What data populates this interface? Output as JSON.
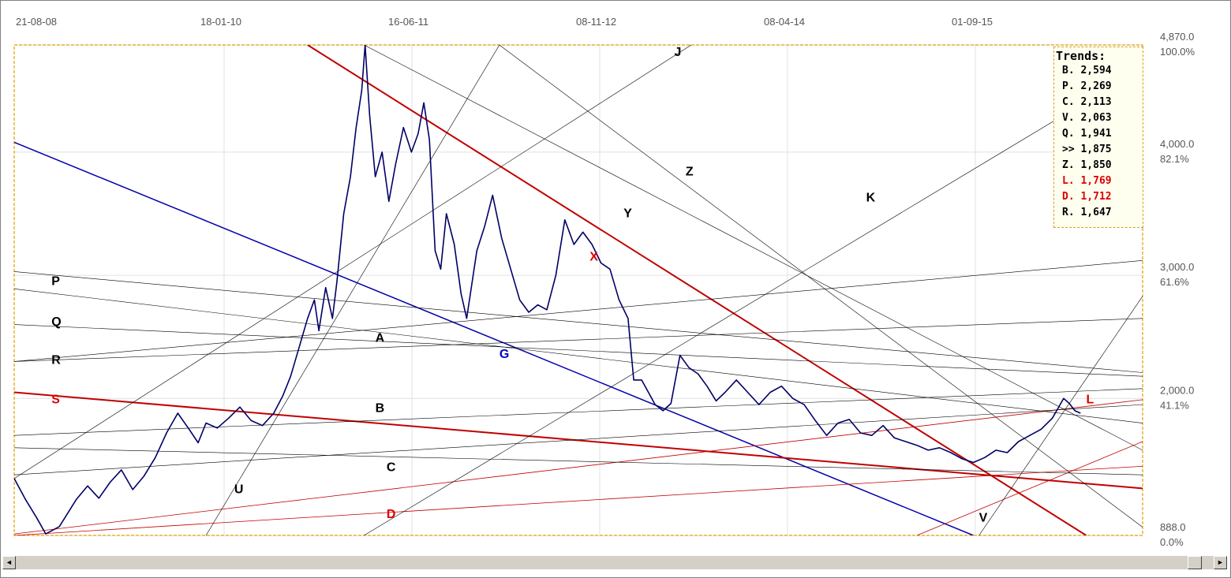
{
  "chart_data": {
    "type": "line",
    "title": "",
    "x_tick_labels": [
      "21-08-08",
      "18-01-10",
      "16-06-11",
      "08-11-12",
      "08-04-14",
      "01-09-15"
    ],
    "y_tick_labels": [
      {
        "value": 4870,
        "price": "4,870.0",
        "pct": "100.0%"
      },
      {
        "value": 4000,
        "price": "4,000.0",
        "pct": "82.1%"
      },
      {
        "value": 3000,
        "price": "3,000.0",
        "pct": "61.6%"
      },
      {
        "value": 2000,
        "price": "2,000.0",
        "pct": "41.1%"
      },
      {
        "value": 888,
        "price": "888.0",
        "pct": "0.0%"
      }
    ],
    "ylim": [
      888,
      4870
    ],
    "grid": true,
    "price_series": {
      "color": "#000066",
      "points": [
        [
          0.0,
          1350
        ],
        [
          0.01,
          1180
        ],
        [
          0.02,
          1030
        ],
        [
          0.028,
          900
        ],
        [
          0.04,
          960
        ],
        [
          0.055,
          1180
        ],
        [
          0.065,
          1290
        ],
        [
          0.075,
          1190
        ],
        [
          0.085,
          1320
        ],
        [
          0.095,
          1420
        ],
        [
          0.105,
          1260
        ],
        [
          0.115,
          1370
        ],
        [
          0.125,
          1520
        ],
        [
          0.135,
          1720
        ],
        [
          0.145,
          1880
        ],
        [
          0.155,
          1750
        ],
        [
          0.163,
          1640
        ],
        [
          0.17,
          1800
        ],
        [
          0.18,
          1760
        ],
        [
          0.19,
          1840
        ],
        [
          0.2,
          1930
        ],
        [
          0.21,
          1820
        ],
        [
          0.22,
          1780
        ],
        [
          0.23,
          1880
        ],
        [
          0.238,
          2020
        ],
        [
          0.245,
          2180
        ],
        [
          0.252,
          2400
        ],
        [
          0.26,
          2650
        ],
        [
          0.266,
          2800
        ],
        [
          0.27,
          2550
        ],
        [
          0.276,
          2900
        ],
        [
          0.282,
          2650
        ],
        [
          0.286,
          2950
        ],
        [
          0.292,
          3500
        ],
        [
          0.298,
          3800
        ],
        [
          0.303,
          4200
        ],
        [
          0.308,
          4500
        ],
        [
          0.311,
          4870
        ],
        [
          0.315,
          4300
        ],
        [
          0.32,
          3800
        ],
        [
          0.326,
          4000
        ],
        [
          0.332,
          3600
        ],
        [
          0.338,
          3900
        ],
        [
          0.345,
          4200
        ],
        [
          0.352,
          4000
        ],
        [
          0.358,
          4150
        ],
        [
          0.363,
          4400
        ],
        [
          0.368,
          4100
        ],
        [
          0.373,
          3200
        ],
        [
          0.378,
          3050
        ],
        [
          0.383,
          3500
        ],
        [
          0.39,
          3250
        ],
        [
          0.396,
          2850
        ],
        [
          0.401,
          2650
        ],
        [
          0.41,
          3200
        ],
        [
          0.417,
          3400
        ],
        [
          0.424,
          3650
        ],
        [
          0.432,
          3300
        ],
        [
          0.44,
          3050
        ],
        [
          0.448,
          2800
        ],
        [
          0.456,
          2700
        ],
        [
          0.464,
          2760
        ],
        [
          0.472,
          2720
        ],
        [
          0.48,
          3000
        ],
        [
          0.488,
          3450
        ],
        [
          0.496,
          3250
        ],
        [
          0.504,
          3350
        ],
        [
          0.512,
          3250
        ],
        [
          0.52,
          3100
        ],
        [
          0.528,
          3050
        ],
        [
          0.536,
          2800
        ],
        [
          0.544,
          2650
        ],
        [
          0.549,
          2150
        ],
        [
          0.556,
          2150
        ],
        [
          0.562,
          2050
        ],
        [
          0.568,
          1950
        ],
        [
          0.575,
          1900
        ],
        [
          0.582,
          1960
        ],
        [
          0.59,
          2350
        ],
        [
          0.598,
          2250
        ],
        [
          0.606,
          2200
        ],
        [
          0.614,
          2100
        ],
        [
          0.622,
          1980
        ],
        [
          0.63,
          2050
        ],
        [
          0.64,
          2150
        ],
        [
          0.65,
          2050
        ],
        [
          0.66,
          1950
        ],
        [
          0.67,
          2050
        ],
        [
          0.68,
          2100
        ],
        [
          0.69,
          2000
        ],
        [
          0.7,
          1950
        ],
        [
          0.71,
          1820
        ],
        [
          0.72,
          1700
        ],
        [
          0.73,
          1800
        ],
        [
          0.74,
          1830
        ],
        [
          0.75,
          1720
        ],
        [
          0.76,
          1700
        ],
        [
          0.77,
          1780
        ],
        [
          0.78,
          1680
        ],
        [
          0.79,
          1650
        ],
        [
          0.8,
          1620
        ],
        [
          0.81,
          1580
        ],
        [
          0.82,
          1600
        ],
        [
          0.83,
          1560
        ],
        [
          0.84,
          1510
        ],
        [
          0.85,
          1480
        ],
        [
          0.86,
          1520
        ],
        [
          0.87,
          1580
        ],
        [
          0.88,
          1560
        ],
        [
          0.89,
          1650
        ],
        [
          0.9,
          1700
        ],
        [
          0.91,
          1750
        ],
        [
          0.92,
          1840
        ],
        [
          0.93,
          2000
        ],
        [
          0.935,
          1960
        ],
        [
          0.94,
          1900
        ],
        [
          0.945,
          1880
        ]
      ]
    },
    "trend_lines": [
      {
        "label": "",
        "color": "#c00000",
        "width": 2,
        "x1": 0.26,
        "y1": 4870,
        "x2": 0.95,
        "y2": 888
      },
      {
        "label": "",
        "color": "#0000aa",
        "width": 1.5,
        "x1": 0.0,
        "y1": 4080,
        "x2": 0.85,
        "y2": 888
      },
      {
        "label": "",
        "color": "#c00000",
        "width": 2,
        "x1": 0.0,
        "y1": 2050,
        "x2": 1.0,
        "y2": 1270
      },
      {
        "label": "",
        "color": "#c00000",
        "width": 0.8,
        "x1": 0.0,
        "y1": 900,
        "x2": 1.0,
        "y2": 1990
      },
      {
        "label": "",
        "color": "#c00000",
        "width": 0.8,
        "x1": 0.8,
        "y1": 888,
        "x2": 1.0,
        "y2": 1650
      },
      {
        "label": "",
        "color": "#c00000",
        "width": 0.8,
        "x1": 0.0,
        "y1": 888,
        "x2": 1.0,
        "y2": 1450
      },
      {
        "label": "",
        "color": "#000000",
        "width": 0.6,
        "x1": 0.0,
        "y1": 1380,
        "x2": 1.0,
        "y2": 1950
      },
      {
        "label": "",
        "color": "#000000",
        "width": 0.6,
        "x1": 0.0,
        "y1": 1600,
        "x2": 1.0,
        "y2": 1380
      },
      {
        "label": "",
        "color": "#000000",
        "width": 0.6,
        "x1": 0.0,
        "y1": 1700,
        "x2": 1.0,
        "y2": 2080
      },
      {
        "label": "",
        "color": "#000000",
        "width": 0.6,
        "x1": 0.0,
        "y1": 2300,
        "x2": 1.0,
        "y2": 2650
      },
      {
        "label": "",
        "color": "#000000",
        "width": 0.6,
        "x1": 0.0,
        "y1": 2600,
        "x2": 1.0,
        "y2": 2180
      },
      {
        "label": "",
        "color": "#000000",
        "width": 0.6,
        "x1": 0.0,
        "y1": 2890,
        "x2": 1.0,
        "y2": 1800
      },
      {
        "label": "",
        "color": "#000000",
        "width": 0.6,
        "x1": 0.0,
        "y1": 3030,
        "x2": 1.0,
        "y2": 2210
      },
      {
        "label": "",
        "color": "#000000",
        "width": 0.6,
        "x1": 0.0,
        "y1": 2300,
        "x2": 1.0,
        "y2": 3120
      },
      {
        "label": "",
        "color": "#000000",
        "width": 0.6,
        "x1": 0.31,
        "y1": 4870,
        "x2": 1.0,
        "y2": 1580
      },
      {
        "label": "",
        "color": "#000000",
        "width": 0.6,
        "x1": 0.43,
        "y1": 4870,
        "x2": 1.0,
        "y2": 955
      },
      {
        "label": "",
        "color": "#000000",
        "width": 0.6,
        "x1": 0.0,
        "y1": 1350,
        "x2": 0.6,
        "y2": 4870
      },
      {
        "label": "",
        "color": "#000000",
        "width": 0.6,
        "x1": 0.31,
        "y1": 888,
        "x2": 0.93,
        "y2": 4300
      },
      {
        "label": "",
        "color": "#000000",
        "width": 0.6,
        "x1": 0.17,
        "y1": 888,
        "x2": 0.43,
        "y2": 4870
      },
      {
        "label": "",
        "color": "#000000",
        "width": 0.6,
        "x1": 0.855,
        "y1": 888,
        "x2": 1.0,
        "y2": 2830
      }
    ],
    "line_labels": [
      {
        "text": "P",
        "color": "#000000",
        "x": 0.033,
        "y": 2920
      },
      {
        "text": "Q",
        "color": "#000000",
        "x": 0.033,
        "y": 2590
      },
      {
        "text": "R",
        "color": "#000000",
        "x": 0.033,
        "y": 2280
      },
      {
        "text": "S",
        "color": "#dd0000",
        "x": 0.033,
        "y": 1960
      },
      {
        "text": "A",
        "color": "#000000",
        "x": 0.32,
        "y": 2460
      },
      {
        "text": "G",
        "color": "#0000cc",
        "x": 0.43,
        "y": 2330
      },
      {
        "text": "B",
        "color": "#000000",
        "x": 0.32,
        "y": 1890
      },
      {
        "text": "C",
        "color": "#000000",
        "x": 0.33,
        "y": 1410
      },
      {
        "text": "U",
        "color": "#000000",
        "x": 0.195,
        "y": 1230
      },
      {
        "text": "D",
        "color": "#dd0000",
        "x": 0.33,
        "y": 1030
      },
      {
        "text": "X",
        "color": "#dd0000",
        "x": 0.51,
        "y": 3120
      },
      {
        "text": "Y",
        "color": "#000000",
        "x": 0.54,
        "y": 3470
      },
      {
        "text": "Z",
        "color": "#000000",
        "x": 0.595,
        "y": 3810
      },
      {
        "text": "J",
        "color": "#000000",
        "x": 0.585,
        "y": 4780
      },
      {
        "text": "K",
        "color": "#000000",
        "x": 0.755,
        "y": 3600
      },
      {
        "text": "V",
        "color": "#000000",
        "x": 0.855,
        "y": 1000
      },
      {
        "text": "L",
        "color": "#dd0000",
        "x": 0.95,
        "y": 1960
      }
    ]
  },
  "legend": {
    "title": "Trends:",
    "items": [
      {
        "text": "B. 2,594",
        "color": "#000000"
      },
      {
        "text": "P. 2,269",
        "color": "#000000"
      },
      {
        "text": "C. 2,113",
        "color": "#000000"
      },
      {
        "text": "V. 2,063",
        "color": "#000000"
      },
      {
        "text": "Q. 1,941",
        "color": "#000000"
      },
      {
        "text": ">> 1,875",
        "color": "#000000"
      },
      {
        "text": "Z. 1,850",
        "color": "#000000"
      },
      {
        "text": "L. 1,769",
        "color": "#dd0000"
      },
      {
        "text": "D. 1,712",
        "color": "#dd0000"
      },
      {
        "text": "R. 1,647",
        "color": "#000000"
      }
    ]
  },
  "scrollbar": {
    "left_arrow": "◄",
    "right_arrow": "►"
  }
}
